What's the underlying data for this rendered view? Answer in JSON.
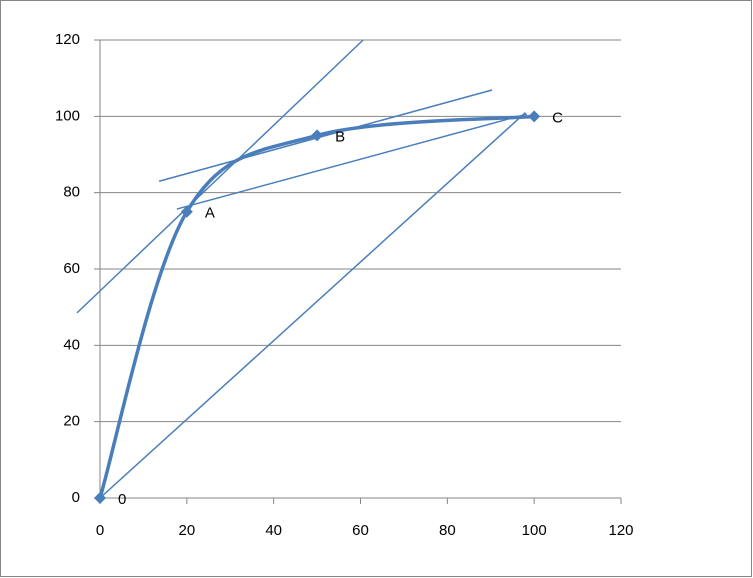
{
  "chart_data": {
    "type": "scatter",
    "series": [
      {
        "color": "#4a7ebb",
        "x": [
          0,
          20,
          50,
          100
        ],
        "values": [
          0,
          75,
          95,
          100
        ]
      }
    ],
    "point_labels": [
      "0",
      "A",
      "B",
      "C"
    ],
    "lines": [
      {
        "x": [
          0,
          98
        ],
        "y": [
          0,
          101
        ]
      },
      {
        "x": [
          -5.3,
          60.6
        ],
        "y": [
          48.5,
          120
        ]
      },
      {
        "x": [
          13.6,
          90.3
        ],
        "y": [
          83,
          106.9
        ]
      },
      {
        "x": [
          17.7,
          98.3
        ],
        "y": [
          75.7,
          100.6
        ]
      }
    ],
    "xlim": [
      0,
      120
    ],
    "xticks": [
      0,
      20,
      40,
      60,
      80,
      100,
      120
    ],
    "ylim": [
      0,
      120
    ],
    "yticks": [
      0,
      20,
      40,
      60,
      80,
      100,
      120
    ],
    "grid": true
  }
}
